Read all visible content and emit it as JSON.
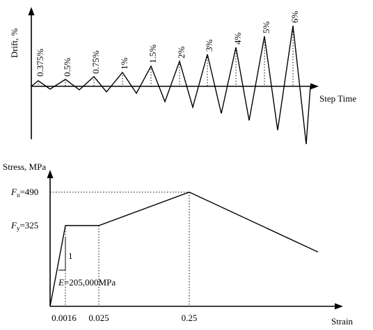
{
  "drift_plot": {
    "y_axis_label": "Drift, %",
    "x_axis_label": "Step Time",
    "cycle_labels": [
      "0.375%",
      "0.5%",
      "0.75%",
      "1%",
      "1.5%",
      "2%",
      "3%",
      "4%",
      "5%",
      "6%"
    ]
  },
  "stress_strain_plot": {
    "y_axis_label": "Stress, MPa",
    "x_axis_label": "Strain",
    "fu_symbol": "F",
    "fu_subscript": "u",
    "fu_value": "=490",
    "fy_symbol": "F",
    "fy_subscript": "y",
    "fy_value": "=325",
    "slope_value": "1",
    "modulus_symbol": "E",
    "modulus_value": "=205,000MPa",
    "x_ticks": [
      "0.0016",
      "0.025",
      "0.25"
    ]
  }
}
